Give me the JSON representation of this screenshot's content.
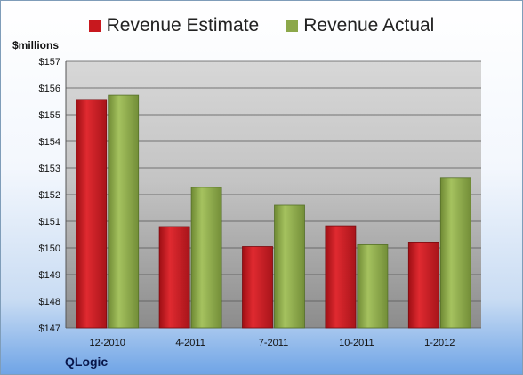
{
  "company": "QLogic",
  "colors": {
    "estimate": "#c8181e",
    "actual": "#8ca84a"
  },
  "chart_data": {
    "type": "bar",
    "title": "",
    "ylabel": "$millions",
    "xlabel": "",
    "legend_position": "top-center",
    "grid": true,
    "ylim": [
      147,
      157
    ],
    "yticks": [
      "$147",
      "$148",
      "$149",
      "$150",
      "$151",
      "$152",
      "$153",
      "$154",
      "$155",
      "$156",
      "$157"
    ],
    "categories": [
      "12-2010",
      "4-2011",
      "7-2011",
      "10-2011",
      "1-2012"
    ],
    "series": [
      {
        "name": "Revenue Estimate",
        "values": [
          155.57,
          150.8,
          150.05,
          150.83,
          150.22
        ]
      },
      {
        "name": "Revenue Actual",
        "values": [
          155.73,
          152.27,
          151.6,
          150.12,
          152.64
        ]
      }
    ]
  }
}
